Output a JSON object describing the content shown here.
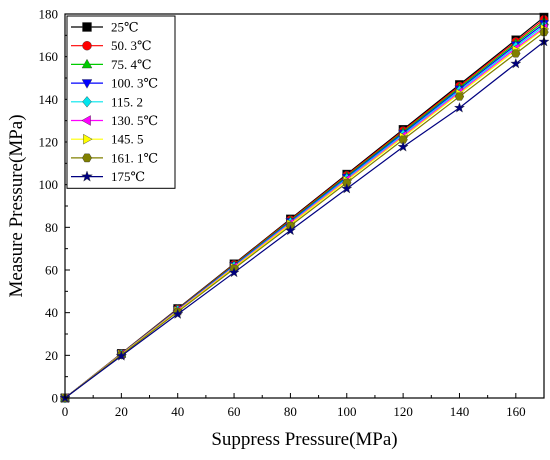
{
  "chart_data": {
    "type": "line",
    "title": "",
    "xlabel": "Suppress Pressure(MPa)",
    "ylabel": "Measure Pressure(MPa)",
    "xlim": [
      0,
      170
    ],
    "ylim": [
      0,
      180
    ],
    "x_ticks": [
      0,
      20,
      40,
      60,
      80,
      100,
      120,
      140,
      160
    ],
    "y_ticks": [
      0,
      20,
      40,
      60,
      80,
      100,
      120,
      140,
      160,
      180
    ],
    "grid": false,
    "legend_position": "top-left",
    "x": [
      0,
      20,
      40,
      60,
      80,
      100,
      120,
      140,
      160,
      170
    ],
    "series": [
      {
        "name": "25℃",
        "color": "#000000",
        "marker": "square",
        "values": [
          0,
          20.9,
          41.9,
          62.9,
          83.9,
          104.9,
          125.9,
          146.9,
          167.9,
          178.5
        ]
      },
      {
        "name": "50. 3℃",
        "color": "#ff0000",
        "marker": "circle",
        "values": [
          0,
          20.8,
          41.7,
          62.6,
          83.5,
          104.4,
          125.3,
          146.2,
          167.1,
          177.5
        ]
      },
      {
        "name": "75. 4℃",
        "color": "#00cc00",
        "marker": "triangle-up",
        "values": [
          0,
          20.7,
          41.5,
          62.3,
          83.1,
          103.9,
          124.7,
          145.5,
          166.3,
          176.5
        ]
      },
      {
        "name": "100. 3℃",
        "color": "#0000ff",
        "marker": "triangle-down",
        "values": [
          0,
          20.6,
          41.3,
          62.0,
          82.7,
          103.4,
          124.1,
          144.8,
          165.5,
          175.5
        ]
      },
      {
        "name": "115. 2",
        "color": "#00e5ee",
        "marker": "diamond",
        "values": [
          0,
          20.5,
          41.1,
          61.7,
          82.3,
          102.9,
          123.5,
          144.1,
          164.7,
          174.5
        ]
      },
      {
        "name": "130. 5℃",
        "color": "#ff00ff",
        "marker": "triangle-left",
        "values": [
          0,
          20.5,
          41.0,
          61.4,
          81.9,
          102.4,
          122.9,
          143.4,
          163.9,
          173.5
        ]
      },
      {
        "name": "145. 5",
        "color": "#ffff00",
        "marker": "triangle-right",
        "values": [
          0,
          20.4,
          40.8,
          61.1,
          81.5,
          101.9,
          122.3,
          142.7,
          163.1,
          173.0
        ]
      },
      {
        "name": "161. 1℃",
        "color": "#808000",
        "marker": "hexagon",
        "values": [
          0,
          20.2,
          40.4,
          60.6,
          80.7,
          100.9,
          121.1,
          141.3,
          161.5,
          171.5
        ]
      },
      {
        "name": "175℃",
        "color": "#000080",
        "marker": "star",
        "values": [
          0,
          19.7,
          39.3,
          58.8,
          78.5,
          98.1,
          117.7,
          136.0,
          156.7,
          167.0
        ]
      }
    ]
  }
}
